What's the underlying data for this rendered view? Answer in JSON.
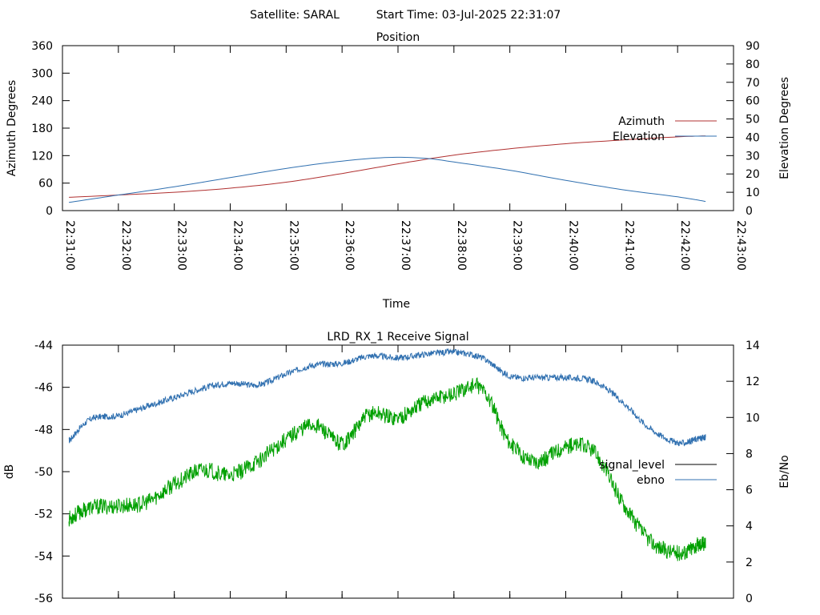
{
  "header": {
    "satellite_label": "Satellite: SARAL",
    "start_time_label": "Start Time: 03-Jul-2025 22:31:07"
  },
  "chart_data": [
    {
      "type": "line",
      "title": "Position",
      "xlabel": "Time",
      "ylabel": "Azimuth Degrees",
      "y2label": "Elevation Degrees",
      "x_ticks": [
        "22:31:00",
        "22:32:00",
        "22:33:00",
        "22:34:00",
        "22:35:00",
        "22:36:00",
        "22:37:00",
        "22:38:00",
        "22:39:00",
        "22:40:00",
        "22:41:00",
        "22:42:00",
        "22:43:00"
      ],
      "xlim": [
        "22:31:00",
        "22:43:00"
      ],
      "ylim": [
        0,
        360
      ],
      "y_ticks": [
        0,
        60,
        120,
        180,
        240,
        300,
        360
      ],
      "y2lim": [
        0,
        90
      ],
      "y2_ticks": [
        0,
        10,
        20,
        30,
        40,
        50,
        60,
        70,
        80,
        90
      ],
      "grid": false,
      "legend": "right",
      "series": [
        {
          "name": "Azimuth",
          "axis": "left",
          "color": "#b03030",
          "x": [
            "22:31:07",
            "22:32:00",
            "22:33:00",
            "22:34:00",
            "22:35:00",
            "22:36:00",
            "22:37:00",
            "22:38:00",
            "22:39:00",
            "22:40:00",
            "22:41:00",
            "22:42:00",
            "22:42:30"
          ],
          "values": [
            29,
            34,
            40,
            49,
            62,
            81,
            102,
            121,
            135,
            146,
            154,
            161,
            163
          ]
        },
        {
          "name": "Elevation",
          "axis": "right",
          "color": "#3070b0",
          "x": [
            "22:31:07",
            "22:32:00",
            "22:33:00",
            "22:34:00",
            "22:35:00",
            "22:36:00",
            "22:36:50",
            "22:37:30",
            "22:38:00",
            "22:39:00",
            "22:40:00",
            "22:41:00",
            "22:42:00",
            "22:42:30"
          ],
          "values": [
            4.5,
            8.5,
            13,
            18,
            23,
            27,
            29,
            28.5,
            26.5,
            22,
            16.5,
            11.5,
            7.5,
            5
          ]
        }
      ]
    },
    {
      "type": "line",
      "title": "LRD_RX_1 Receive Signal",
      "xlabel": "",
      "ylabel": "dB",
      "y2label": "Eb/No",
      "xlim": [
        "22:31:00",
        "22:43:00"
      ],
      "ylim": [
        -56,
        -44
      ],
      "y_ticks": [
        -56,
        -54,
        -52,
        -50,
        -48,
        -46,
        -44
      ],
      "y2lim": [
        0,
        14
      ],
      "y2_ticks": [
        0,
        2,
        4,
        6,
        8,
        10,
        12,
        14
      ],
      "grid": false,
      "legend": "right",
      "series": [
        {
          "name": "signal_level",
          "axis": "left",
          "color": "#000000",
          "x": [],
          "values": []
        },
        {
          "name": "ebno",
          "axis": "right",
          "color": "#3070b0",
          "x": [
            "22:31:07",
            "22:31:30",
            "22:32:00",
            "22:32:30",
            "22:33:00",
            "22:33:30",
            "22:34:00",
            "22:34:30",
            "22:35:00",
            "22:35:30",
            "22:36:00",
            "22:36:30",
            "22:37:00",
            "22:37:30",
            "22:38:00",
            "22:38:30",
            "22:39:00",
            "22:39:30",
            "22:40:00",
            "22:40:30",
            "22:41:00",
            "22:41:30",
            "22:42:00",
            "22:42:20",
            "22:42:30"
          ],
          "values": [
            8.7,
            9.9,
            10.1,
            10.6,
            11.1,
            11.6,
            11.9,
            11.8,
            12.4,
            12.9,
            13.0,
            13.4,
            13.3,
            13.5,
            13.6,
            13.3,
            12.3,
            12.2,
            12.2,
            12.0,
            10.9,
            9.4,
            8.6,
            8.8,
            8.9
          ]
        },
        {
          "name": "",
          "axis": "right",
          "color": "#00a000",
          "x": [
            "22:31:07",
            "22:31:30",
            "22:32:00",
            "22:32:30",
            "22:33:00",
            "22:33:30",
            "22:34:00",
            "22:34:30",
            "22:35:00",
            "22:35:30",
            "22:36:00",
            "22:36:30",
            "22:37:00",
            "22:37:30",
            "22:38:00",
            "22:38:30",
            "22:39:00",
            "22:39:30",
            "22:40:00",
            "22:40:30",
            "22:41:00",
            "22:41:30",
            "22:42:00",
            "22:42:20",
            "22:42:30"
          ],
          "values": [
            4.4,
            5.0,
            5.1,
            5.3,
            6.3,
            7.1,
            6.8,
            7.6,
            8.8,
            9.6,
            8.6,
            10.2,
            10.0,
            10.9,
            11.3,
            11.6,
            8.6,
            7.6,
            8.4,
            8.1,
            5.4,
            3.2,
            2.5,
            2.9,
            3.1
          ]
        }
      ]
    }
  ]
}
